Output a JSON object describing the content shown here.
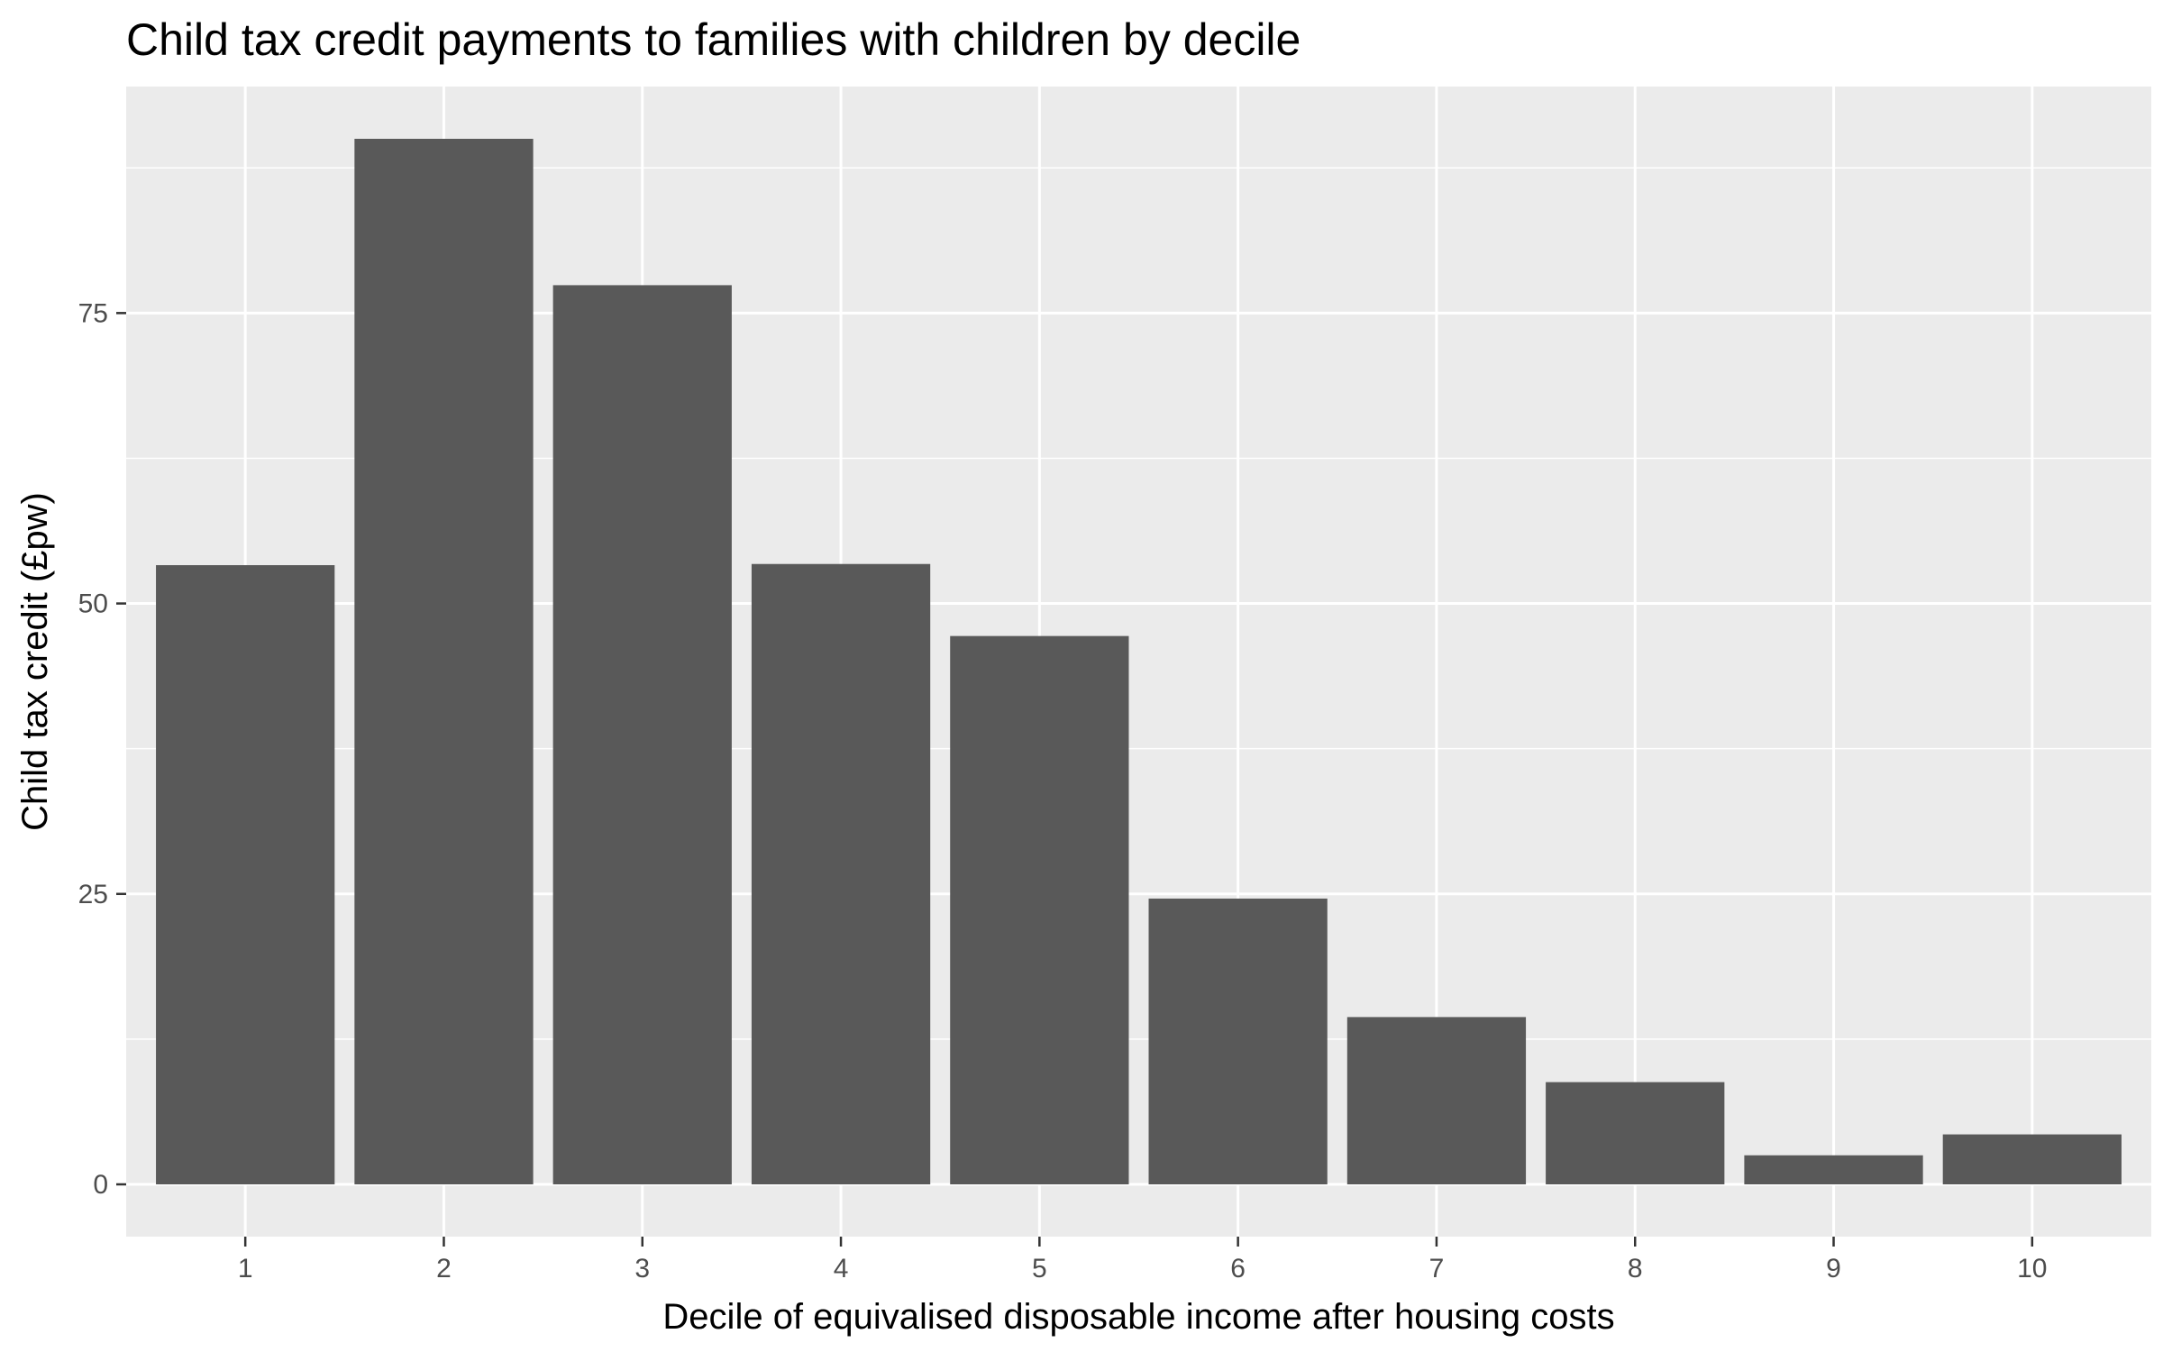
{
  "chart_data": {
    "type": "bar",
    "title": "Child tax credit payments to families with children by decile",
    "xlabel": "Decile of equivalised disposable income after housing costs",
    "ylabel": "Child tax credit (£pw)",
    "categories": [
      "1",
      "2",
      "3",
      "4",
      "5",
      "6",
      "7",
      "8",
      "9",
      "10"
    ],
    "values": [
      53.3,
      90.0,
      77.4,
      53.4,
      47.2,
      24.6,
      14.4,
      8.8,
      2.5,
      4.3
    ],
    "ylim": [
      -4.5,
      94.5
    ],
    "yticks": [
      0,
      25,
      50,
      75
    ],
    "ytick_labels": [
      "0",
      "25",
      "50",
      "75"
    ],
    "grid": true,
    "legend": "none",
    "colors": {
      "bar": "#595959",
      "panel_background": "#ebebeb",
      "grid_line": "#ffffff",
      "tick_text": "#4d4d4d",
      "axis_tick": "#333333"
    }
  }
}
